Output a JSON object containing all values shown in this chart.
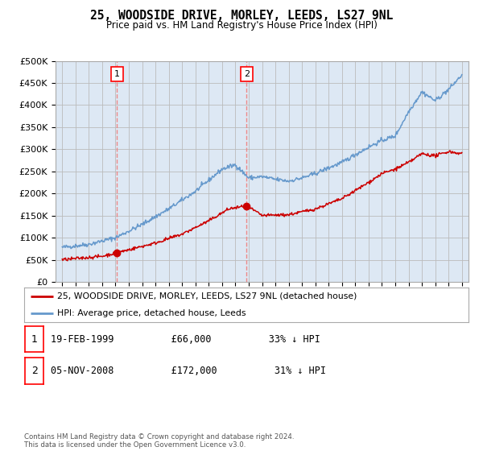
{
  "title": "25, WOODSIDE DRIVE, MORLEY, LEEDS, LS27 9NL",
  "subtitle": "Price paid vs. HM Land Registry's House Price Index (HPI)",
  "legend_line1": "25, WOODSIDE DRIVE, MORLEY, LEEDS, LS27 9NL (detached house)",
  "legend_line2": "HPI: Average price, detached house, Leeds",
  "footer": "Contains HM Land Registry data © Crown copyright and database right 2024.\nThis data is licensed under the Open Government Licence v3.0.",
  "annotations": [
    {
      "num": "1",
      "date": "19-FEB-1999",
      "price": "£66,000",
      "pct": "33% ↓ HPI",
      "year": 1999.12
    },
    {
      "num": "2",
      "date": "05-NOV-2008",
      "price": "£172,000",
      "pct": "31% ↓ HPI",
      "year": 2008.84
    }
  ],
  "property_color": "#cc0000",
  "hpi_color": "#6699cc",
  "vline_color": "#ee8888",
  "ylim": [
    0,
    500000
  ],
  "yticks": [
    0,
    50000,
    100000,
    150000,
    200000,
    250000,
    300000,
    350000,
    400000,
    450000,
    500000
  ],
  "ytick_labels": [
    "£0",
    "£50K",
    "£100K",
    "£150K",
    "£200K",
    "£250K",
    "£300K",
    "£350K",
    "£400K",
    "£450K",
    "£500K"
  ],
  "xlim": [
    1994.5,
    2025.5
  ],
  "bg_color": "#dde8f4",
  "plot_bg": "#ffffff",
  "grid_color": "#bbbbbb"
}
